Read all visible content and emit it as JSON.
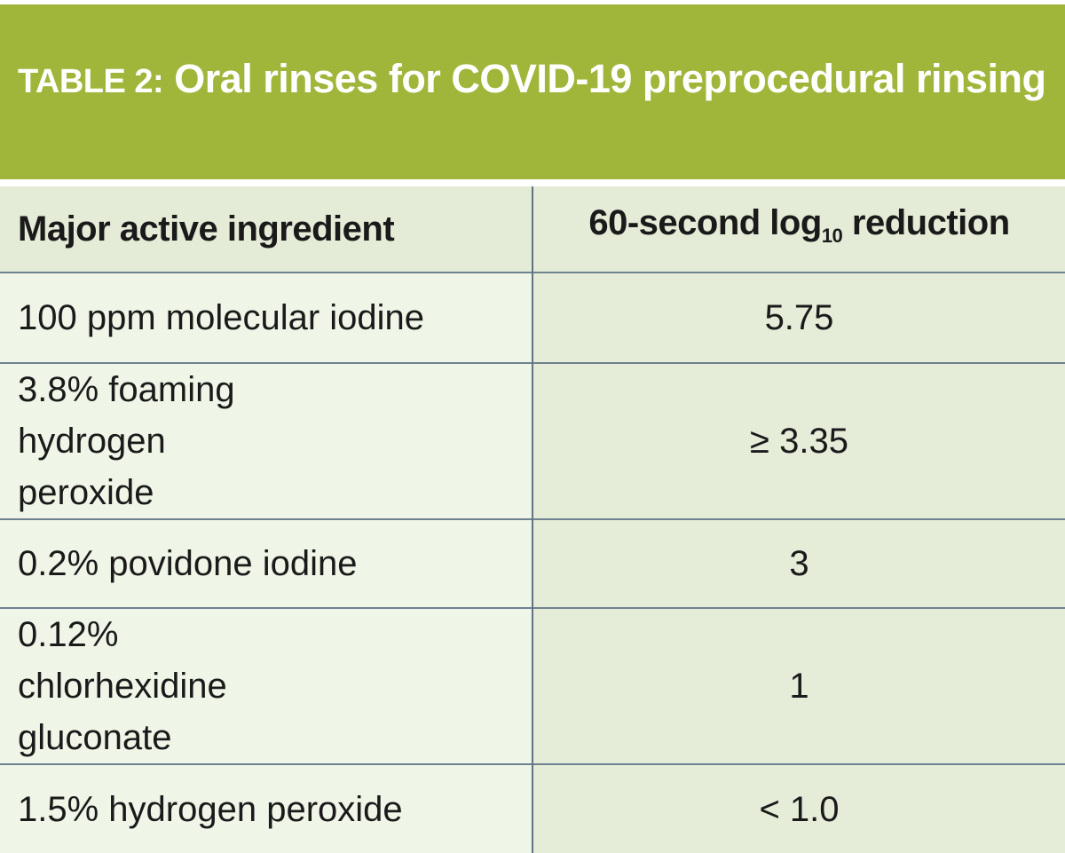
{
  "header": {
    "label": "TABLE 2:",
    "title": "Oral rinses for COVID-19 preprocedural rinsing"
  },
  "table": {
    "columns": [
      {
        "text": "Major active ingredient"
      },
      {
        "before": "60-second log",
        "sub": "10",
        "after": "reduction"
      }
    ],
    "rows": [
      [
        "100 ppm molecular iodine",
        "5.75"
      ],
      [
        "3.8% foaming hydrogen peroxide",
        "≥ 3.35"
      ],
      [
        "0.2% povidone iodine",
        "3"
      ],
      [
        "0.12% chlorhexidine gluconate",
        "1"
      ],
      [
        "1.5% hydrogen peroxide",
        "< 1.0"
      ]
    ]
  }
}
